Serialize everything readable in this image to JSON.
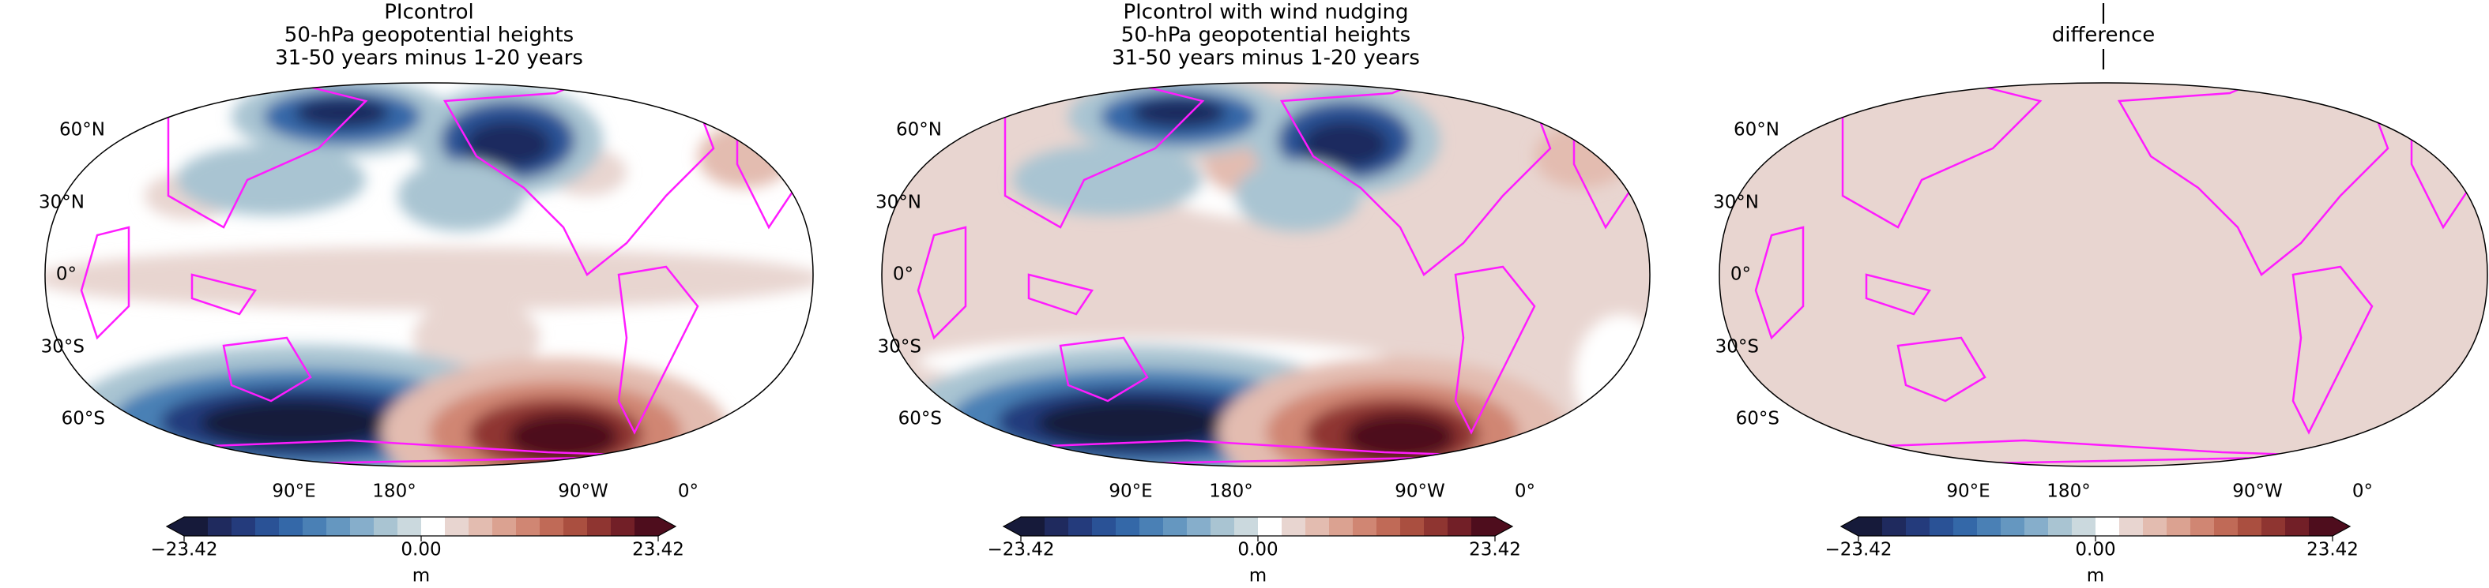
{
  "colormap": [
    "#161a3a",
    "#1f2a5e",
    "#243b7c",
    "#2a5296",
    "#3468a8",
    "#4a80b5",
    "#6597c0",
    "#86aecb",
    "#a9c4d2",
    "#cbd9de",
    "#ffffff",
    "#e8d5d0",
    "#e3bcb0",
    "#dba291",
    "#d08673",
    "#c06a57",
    "#aa4f40",
    "#8f3531",
    "#721f27",
    "#4e0d1d"
  ],
  "panels": [
    {
      "title": [
        "PIcontrol",
        "50-hPa geopotential heights",
        "31-50 years minus 1-20 years"
      ],
      "lat_labels": [
        "60°N",
        "30°N",
        "0°",
        "30°S",
        "60°S"
      ],
      "lon_labels": [
        "90°E",
        "180°",
        "90°W",
        "0°"
      ],
      "colorbar": {
        "lim": [
          -23.42,
          23.42
        ],
        "ticks": [
          {
            "value": -23.42,
            "label": "−23.42"
          },
          {
            "value": 0,
            "label": "0.00"
          },
          23.42
        ],
        "label": "m"
      }
    },
    {
      "title": [
        "PIcontrol with wind nudging",
        "50-hPa geopotential heights",
        "31-50 years minus 1-20 years"
      ],
      "lat_labels": [
        "60°N",
        "30°N",
        "0°",
        "30°S",
        "60°S"
      ],
      "lon_labels": [
        "90°E",
        "180°",
        "90°W",
        "0°"
      ],
      "colorbar": {
        "lim": [
          -23.42,
          23.42
        ],
        "ticks": [
          {
            "value": -23.42,
            "label": "−23.42"
          },
          {
            "value": 0,
            "label": "0.00"
          },
          23.42
        ],
        "label": "m"
      }
    },
    {
      "title": [
        "|",
        "difference",
        "|"
      ],
      "lat_labels": [
        "60°N",
        "30°N",
        "0°",
        "30°S",
        "60°S"
      ],
      "lon_labels": [
        "90°E",
        "180°",
        "90°W",
        "0°"
      ],
      "colorbar": {
        "lim": [
          -23.42,
          23.42
        ],
        "ticks": [
          {
            "value": -23.42,
            "label": "−23.42"
          },
          {
            "value": 0,
            "label": "0.00"
          },
          23.42
        ],
        "label": "m"
      }
    }
  ]
}
